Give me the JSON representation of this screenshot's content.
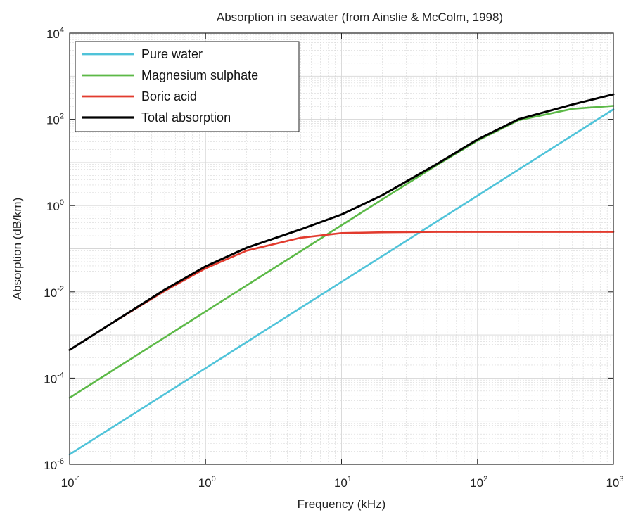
{
  "chart_data": {
    "type": "line",
    "title": "Absorption in seawater (from Ainslie & McColm, 1998)",
    "xlabel": "Frequency (kHz)",
    "ylabel": "Absorption (dB/km)",
    "xscale": "log",
    "yscale": "log",
    "xlim": [
      0.1,
      1000
    ],
    "ylim": [
      1e-06,
      10000
    ],
    "grid": true,
    "legend_position": "top-left",
    "x_ticks": [
      {
        "base": "10",
        "exp": "-1",
        "value": 0.1
      },
      {
        "base": "10",
        "exp": "0",
        "value": 1
      },
      {
        "base": "10",
        "exp": "1",
        "value": 10
      },
      {
        "base": "10",
        "exp": "2",
        "value": 100
      },
      {
        "base": "10",
        "exp": "3",
        "value": 1000
      }
    ],
    "y_ticks": [
      {
        "base": "10",
        "exp": "-6",
        "value": 1e-06
      },
      {
        "base": "10",
        "exp": "-4",
        "value": 0.0001
      },
      {
        "base": "10",
        "exp": "-2",
        "value": 0.01
      },
      {
        "base": "10",
        "exp": "0",
        "value": 1
      },
      {
        "base": "10",
        "exp": "2",
        "value": 100
      },
      {
        "base": "10",
        "exp": "4",
        "value": 10000
      }
    ],
    "x": [
      0.1,
      0.2,
      0.5,
      1,
      2,
      5,
      10,
      20,
      50,
      100,
      200,
      500,
      1000
    ],
    "series": [
      {
        "name": "Pure water",
        "color": "#4fc3d9",
        "values": [
          1.7e-06,
          6.8e-06,
          4.25e-05,
          0.00017,
          0.00068,
          0.00425,
          0.017,
          0.068,
          0.425,
          1.7,
          6.8,
          42.5,
          170
        ]
      },
      {
        "name": "Magnesium sulphate",
        "color": "#5cb947",
        "values": [
          3.5e-05,
          0.00014,
          0.000875,
          0.0035,
          0.014,
          0.0875,
          0.35,
          1.4,
          8.6,
          32,
          95,
          175,
          205
        ]
      },
      {
        "name": "Boric acid",
        "color": "#e23b2e",
        "values": [
          0.00045,
          0.0018,
          0.0105,
          0.035,
          0.09,
          0.18,
          0.23,
          0.24,
          0.245,
          0.245,
          0.245,
          0.245,
          0.245
        ]
      },
      {
        "name": "Total absorption",
        "color": "#000000",
        "values": [
          0.00045,
          0.0018,
          0.0112,
          0.039,
          0.105,
          0.28,
          0.62,
          1.75,
          9.1,
          34,
          100,
          220,
          380
        ]
      }
    ]
  }
}
